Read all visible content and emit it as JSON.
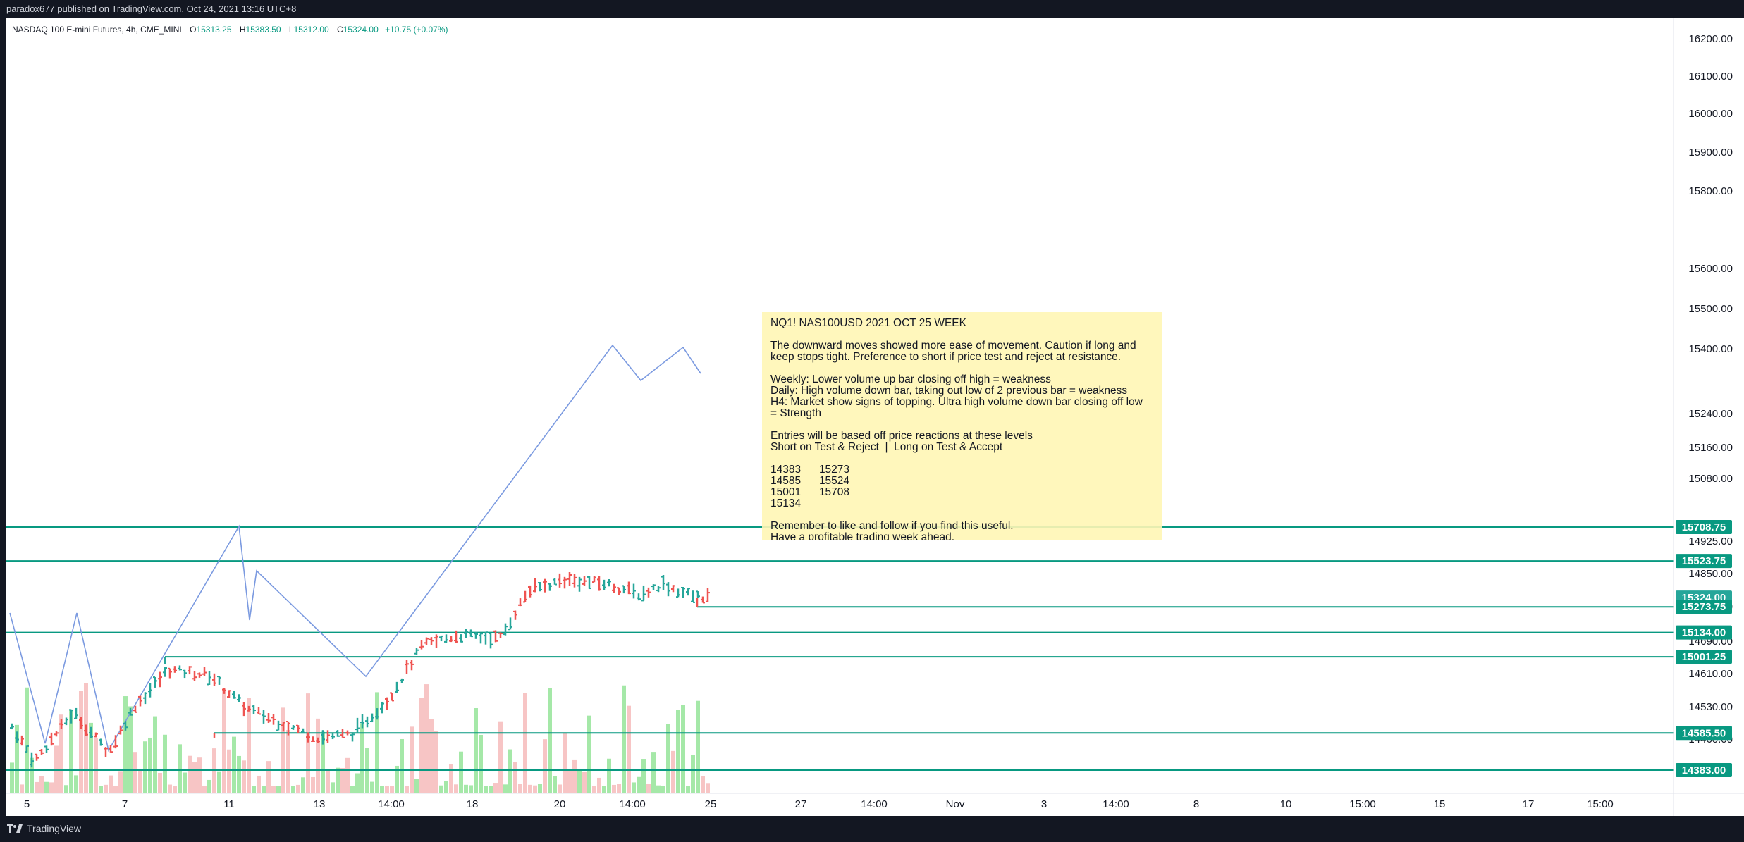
{
  "header": {
    "published": "paradox677 published on TradingView.com, Oct 24, 2021 13:16 UTC+8"
  },
  "legend": {
    "symbol": "NASDAQ 100 E-mini Futures, 4h, CME_MINI",
    "o_label": "O",
    "o_value": "15313.25",
    "h_label": "H",
    "h_value": "15383.50",
    "l_label": "L",
    "l_value": "15312.00",
    "c_label": "C",
    "c_value": "15324.00",
    "change": "+10.75 (+0.07%)"
  },
  "price_axis": {
    "ticks": [
      "16200.00",
      "16100.00",
      "16000.00",
      "15900.00",
      "15800.00",
      "15600.00",
      "15500.00",
      "15400.00",
      "15240.00",
      "15160.00",
      "15080.00",
      "14925.00",
      "14850.00",
      "14770.00",
      "14690.00",
      "14610.00",
      "14530.00",
      "14460.00"
    ],
    "badges": [
      "15708.75",
      "15523.75",
      "15324.00",
      "15273.75",
      "15134.00",
      "15001.25",
      "14585.50",
      "14383.00"
    ],
    "current_price": "15324.00"
  },
  "time_axis": {
    "ticks": [
      "5",
      "7",
      "11",
      "13",
      "14:00",
      "18",
      "20",
      "14:00",
      "25",
      "27",
      "14:00",
      "Nov",
      "3",
      "14:00",
      "8",
      "10",
      "15:00",
      "15",
      "17",
      "15:00"
    ]
  },
  "levels": {
    "values": [
      15708.75,
      15523.75,
      15273.75,
      15134.0,
      15001.25,
      14585.5,
      14383.0
    ],
    "color": "#089981"
  },
  "note": {
    "lines": [
      "NQ1! NAS100USD 2021 OCT 25 WEEK",
      "",
      "The downward moves showed more ease of movement. Caution if long and",
      "keep stops tight. Preference to short if price test and reject at resistance.",
      "",
      "Weekly: Lower volume up bar closing off high = weakness",
      "Daily: High volume down bar, taking out low of 2 previous bar = weakness",
      "H4: Market show signs of topping. Ultra high volume down bar closing off low",
      "= Strength",
      "",
      "Entries will be based off price reactions at these levels",
      "Short on Test & Reject  |  Long on Test & Accept",
      "",
      "14383      15273",
      "14585      15524",
      "15001      15708",
      "15134",
      "",
      "Remember to like and follow if you find this useful.",
      "Have a profitable trading week ahead."
    ]
  },
  "colors": {
    "up": "#26a69a",
    "down": "#ef5350",
    "up_volume": "#a5e8a8",
    "down_volume": "#f7c5c5",
    "zigzag": "#7b9ae0",
    "note_bg": "#fff6b5"
  },
  "footer": {
    "brand": "TradingView"
  }
}
